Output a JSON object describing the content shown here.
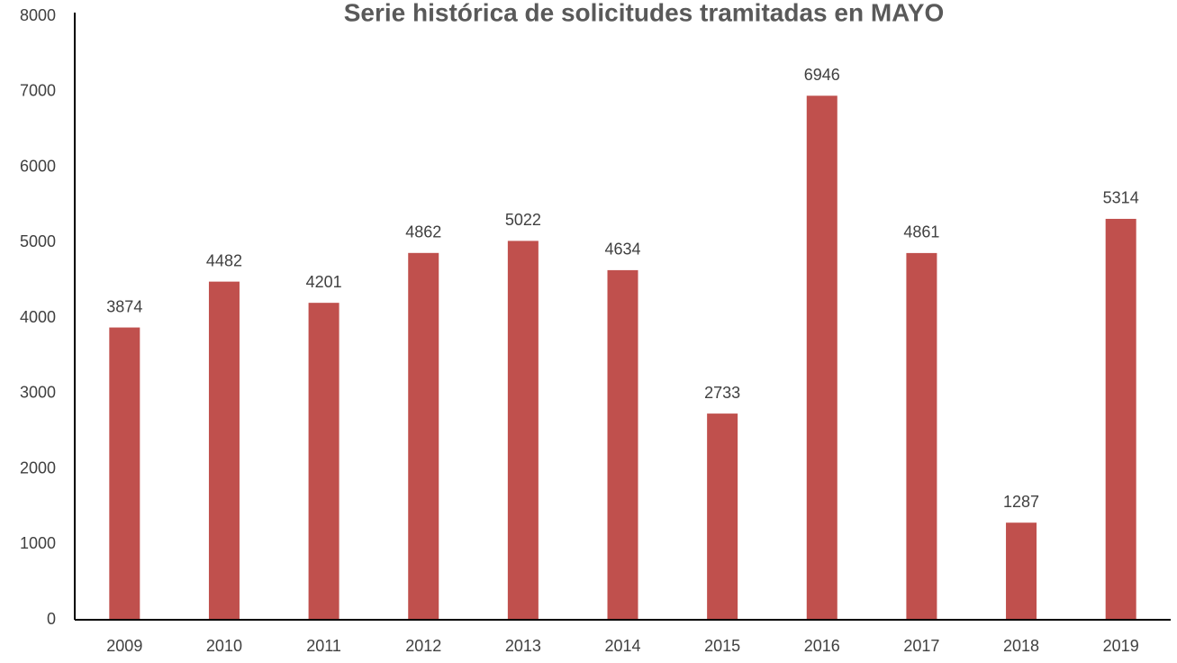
{
  "chart_data": {
    "type": "bar",
    "title": "Serie histórica de solicitudes tramitadas en MAYO",
    "categories": [
      "2009",
      "2010",
      "2011",
      "2012",
      "2013",
      "2014",
      "2015",
      "2016",
      "2017",
      "2018",
      "2019"
    ],
    "values": [
      3874,
      4482,
      4201,
      4862,
      5022,
      4634,
      2733,
      6946,
      4861,
      1287,
      5314
    ],
    "color": "#c0504d",
    "ylim": [
      0,
      8000
    ],
    "yticks": [
      0,
      1000,
      2000,
      3000,
      4000,
      5000,
      6000,
      7000,
      8000
    ],
    "grid": false
  }
}
